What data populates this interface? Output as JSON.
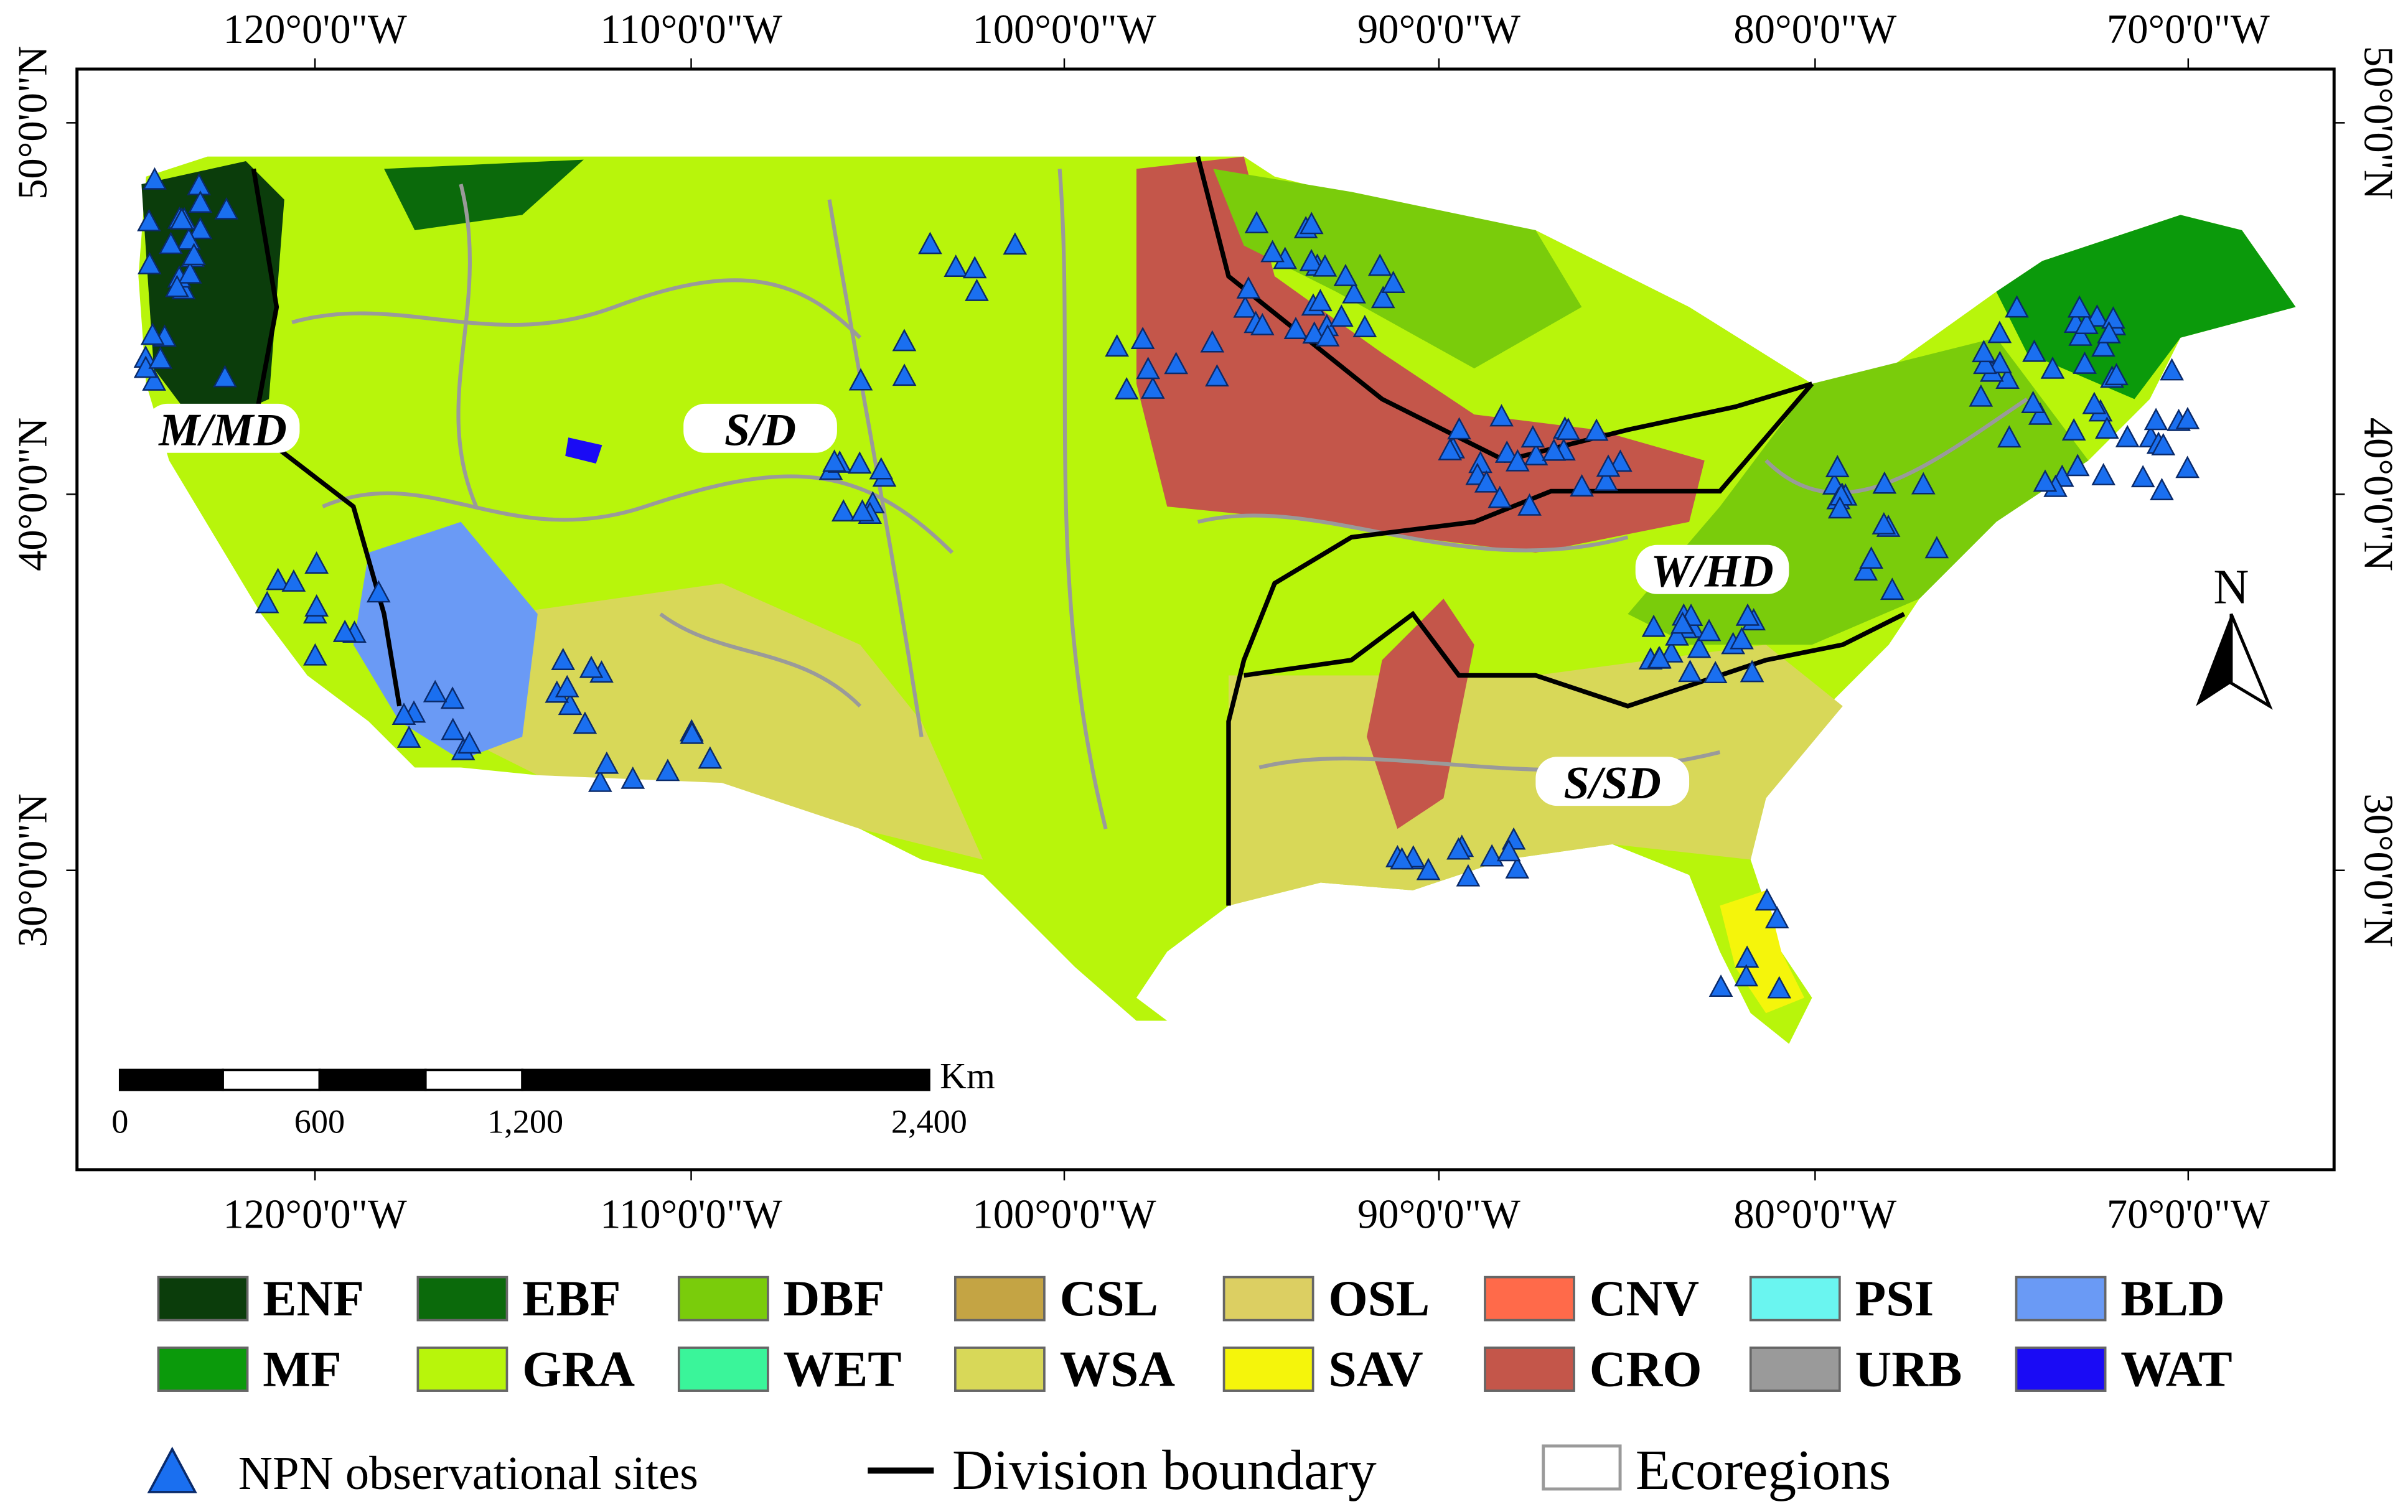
{
  "map": {
    "lon_labels": [
      "120°0'0\"W",
      "110°0'0\"W",
      "100°0'0\"W",
      "90°0'0\"W",
      "80°0'0\"W",
      "70°0'0\"W"
    ],
    "lat_labels": [
      "50°0'0\"N",
      "40°0'0\"N",
      "30°0'0\"N"
    ],
    "divisions": [
      "M/MD",
      "S/D",
      "W/HD",
      "S/SD"
    ],
    "scale_bar": {
      "unit": "Km",
      "labels": [
        "0",
        "600",
        "1,200",
        "2,400"
      ]
    },
    "north_arrow": "N"
  },
  "legend": {
    "land_cover": [
      {
        "label": "ENF",
        "color": "#0b3d0b"
      },
      {
        "label": "EBF",
        "color": "#0b6a0b"
      },
      {
        "label": "DBF",
        "color": "#7acc0b"
      },
      {
        "label": "CSL",
        "color": "#c4a444"
      },
      {
        "label": "OSL",
        "color": "#dccf62"
      },
      {
        "label": "CNV",
        "color": "#ff6a4a"
      },
      {
        "label": "PSI",
        "color": "#6af5f0"
      },
      {
        "label": "BLD",
        "color": "#6a9af5"
      },
      {
        "label": "MF",
        "color": "#0b9a0b"
      },
      {
        "label": "GRA",
        "color": "#b8f50b"
      },
      {
        "label": "WET",
        "color": "#3af59a"
      },
      {
        "label": "WSA",
        "color": "#d8d858"
      },
      {
        "label": "SAV",
        "color": "#f5f50b"
      },
      {
        "label": "CRO",
        "color": "#c4564a"
      },
      {
        "label": "URB",
        "color": "#9a9a9a"
      },
      {
        "label": "WAT",
        "color": "#1a0bf5"
      }
    ],
    "symbols": [
      "NPN observational sites",
      "Division boundary",
      "Ecoregions"
    ]
  }
}
